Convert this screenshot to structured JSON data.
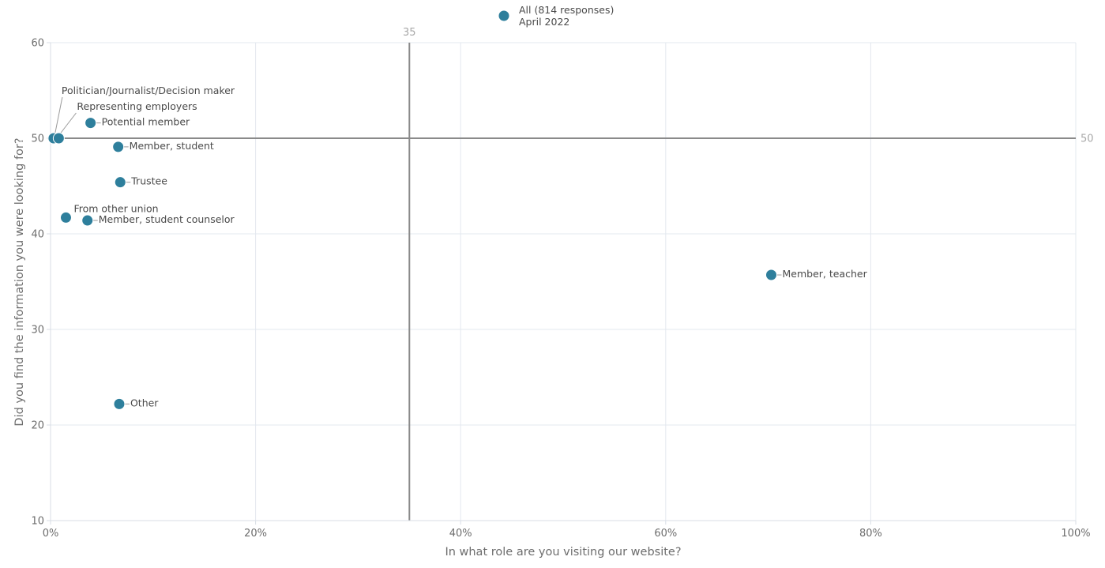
{
  "chart_data": {
    "type": "scatter",
    "title": "",
    "xlabel": "In what role are you visiting our website?",
    "ylabel": "Did you find the information you were looking for?",
    "xlim": [
      0,
      100
    ],
    "ylim": [
      10,
      60
    ],
    "x_ticks": [
      "0%",
      "20%",
      "40%",
      "60%",
      "80%",
      "100%"
    ],
    "y_ticks": [
      "10",
      "20",
      "30",
      "40",
      "50",
      "60"
    ],
    "reference_lines": {
      "x": "35",
      "y": "50"
    },
    "grid": true,
    "legend": {
      "position": "top-center",
      "lines": [
        "All (814 responses)",
        "April 2022"
      ]
    },
    "point_color": "#2e7f9c",
    "series": [
      {
        "points": [
          {
            "label": "Politician/Journalist/Decision maker",
            "x": 0.3,
            "y": 50
          },
          {
            "label": "Representing employers",
            "x": 0.8,
            "y": 50
          },
          {
            "label": "Potential member",
            "x": 3.9,
            "y": 51.6
          },
          {
            "label": "Member, student",
            "x": 6.6,
            "y": 49.1
          },
          {
            "label": "Trustee",
            "x": 6.8,
            "y": 45.4
          },
          {
            "label": "From other union",
            "x": 1.5,
            "y": 41.7
          },
          {
            "label": "Member, student counselor",
            "x": 3.6,
            "y": 41.4
          },
          {
            "label": "Member, teacher",
            "x": 70.3,
            "y": 35.7
          },
          {
            "label": "Other",
            "x": 6.7,
            "y": 22.2
          }
        ]
      }
    ]
  }
}
